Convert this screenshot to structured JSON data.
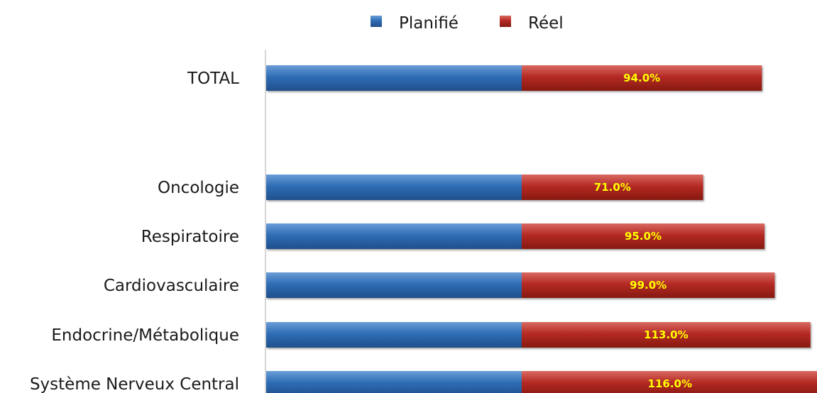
{
  "chart_data": {
    "type": "bar",
    "orientation": "horizontal",
    "stacked": true,
    "categories": [
      "TOTAL",
      "Oncologie",
      "Respiratoire",
      "Cardiovasculaire",
      "Endocrine/Métabolique",
      "Système Nerveux Central"
    ],
    "series": [
      {
        "name": "Planifié",
        "color": "#2f6db5",
        "values": [
          100,
          100,
          100,
          100,
          100,
          100
        ]
      },
      {
        "name": "Réel",
        "color": "#b52a24",
        "values": [
          94.0,
          71.0,
          95.0,
          99.0,
          113.0,
          116.0
        ],
        "labels": [
          "94.0%",
          "71.0%",
          "95.0%",
          "99.0%",
          "113.0%",
          "116.0%"
        ]
      }
    ],
    "legend": {
      "position": "top",
      "items": [
        "Planifié",
        "Réel"
      ]
    },
    "title": "",
    "xlabel": "",
    "ylabel": "",
    "grid": false
  }
}
